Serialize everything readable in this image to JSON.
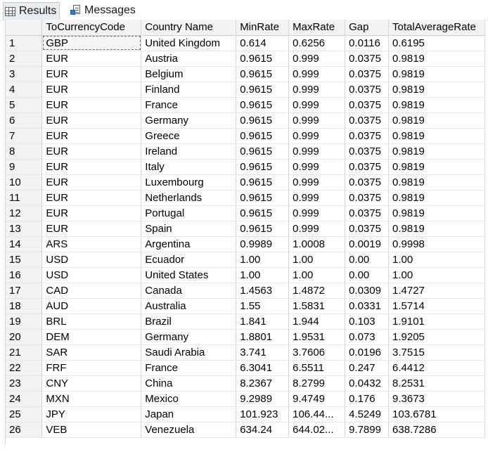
{
  "tabs": [
    {
      "label": "Results",
      "icon": "grid-icon",
      "active": true
    },
    {
      "label": "Messages",
      "icon": "messages-icon",
      "active": false
    }
  ],
  "grid": {
    "columns": [
      "",
      "ToCurrencyCode",
      "Country Name",
      "MinRate",
      "MaxRate",
      "Gap",
      "TotalAverageRate"
    ],
    "rows": [
      [
        "1",
        "GBP",
        "United Kingdom",
        "0.614",
        "0.6256",
        "0.0116",
        "0.6195"
      ],
      [
        "2",
        "EUR",
        "Austria",
        "0.9615",
        "0.999",
        "0.0375",
        "0.9819"
      ],
      [
        "3",
        "EUR",
        "Belgium",
        "0.9615",
        "0.999",
        "0.0375",
        "0.9819"
      ],
      [
        "4",
        "EUR",
        "Finland",
        "0.9615",
        "0.999",
        "0.0375",
        "0.9819"
      ],
      [
        "5",
        "EUR",
        "France",
        "0.9615",
        "0.999",
        "0.0375",
        "0.9819"
      ],
      [
        "6",
        "EUR",
        "Germany",
        "0.9615",
        "0.999",
        "0.0375",
        "0.9819"
      ],
      [
        "7",
        "EUR",
        "Greece",
        "0.9615",
        "0.999",
        "0.0375",
        "0.9819"
      ],
      [
        "8",
        "EUR",
        "Ireland",
        "0.9615",
        "0.999",
        "0.0375",
        "0.9819"
      ],
      [
        "9",
        "EUR",
        "Italy",
        "0.9615",
        "0.999",
        "0.0375",
        "0.9819"
      ],
      [
        "10",
        "EUR",
        "Luxembourg",
        "0.9615",
        "0.999",
        "0.0375",
        "0.9819"
      ],
      [
        "11",
        "EUR",
        "Netherlands",
        "0.9615",
        "0.999",
        "0.0375",
        "0.9819"
      ],
      [
        "12",
        "EUR",
        "Portugal",
        "0.9615",
        "0.999",
        "0.0375",
        "0.9819"
      ],
      [
        "13",
        "EUR",
        "Spain",
        "0.9615",
        "0.999",
        "0.0375",
        "0.9819"
      ],
      [
        "14",
        "ARS",
        "Argentina",
        "0.9989",
        "1.0008",
        "0.0019",
        "0.9998"
      ],
      [
        "15",
        "USD",
        "Ecuador",
        "1.00",
        "1.00",
        "0.00",
        "1.00"
      ],
      [
        "16",
        "USD",
        "United States",
        "1.00",
        "1.00",
        "0.00",
        "1.00"
      ],
      [
        "17",
        "CAD",
        "Canada",
        "1.4563",
        "1.4872",
        "0.0309",
        "1.4727"
      ],
      [
        "18",
        "AUD",
        "Australia",
        "1.55",
        "1.5831",
        "0.0331",
        "1.5714"
      ],
      [
        "19",
        "BRL",
        "Brazil",
        "1.841",
        "1.944",
        "0.103",
        "1.9101"
      ],
      [
        "20",
        "DEM",
        "Germany",
        "1.8801",
        "1.9531",
        "0.073",
        "1.9205"
      ],
      [
        "21",
        "SAR",
        "Saudi Arabia",
        "3.741",
        "3.7606",
        "0.0196",
        "3.7515"
      ],
      [
        "22",
        "FRF",
        "France",
        "6.3041",
        "6.5511",
        "0.247",
        "6.4412"
      ],
      [
        "23",
        "CNY",
        "China",
        "8.2367",
        "8.2799",
        "0.0432",
        "8.2531"
      ],
      [
        "24",
        "MXN",
        "Mexico",
        "9.2989",
        "9.4749",
        "0.176",
        "9.3673"
      ],
      [
        "25",
        "JPY",
        "Japan",
        "101.923",
        "106.44...",
        "4.5249",
        "103.6781"
      ],
      [
        "26",
        "VEB",
        "Venezuela",
        "634.24",
        "644.02...",
        "9.7899",
        "638.7286"
      ]
    ],
    "selected_cell": {
      "row": 0,
      "col": 1
    }
  }
}
